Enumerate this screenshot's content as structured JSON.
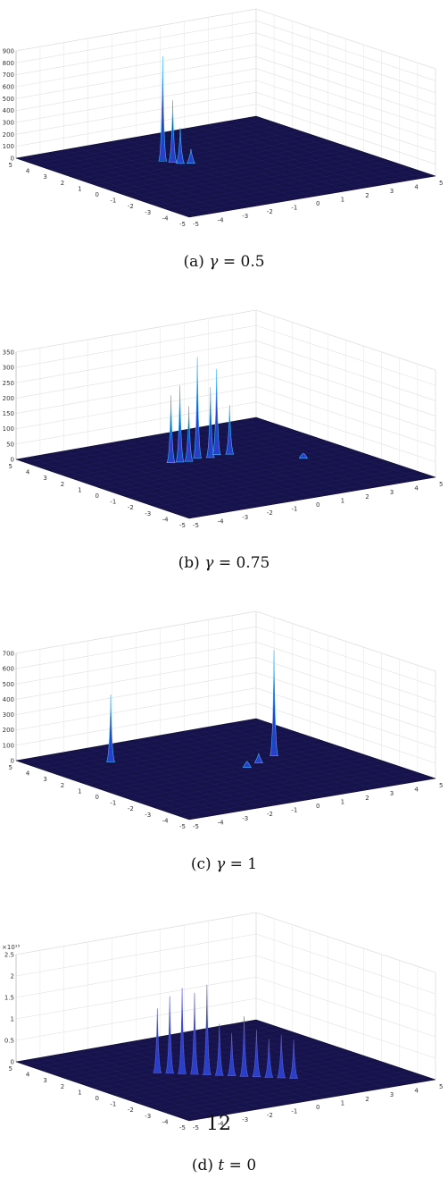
{
  "figure": {
    "panels": [
      {
        "id": "a",
        "caption": {
          "label": "(a)",
          "symbol": "γ",
          "op": "=",
          "value": "0.5"
        },
        "chart_data": {
          "type": "surface",
          "title": "",
          "xlabel": "",
          "ylabel": "",
          "zlabel": "",
          "zlim": [
            0,
            900
          ],
          "z_ticks": [
            "0",
            "100",
            "200",
            "300",
            "400",
            "500",
            "600",
            "700",
            "800",
            "900"
          ],
          "x_ticks": [
            "-5",
            "-4",
            "-3",
            "-2",
            "-1",
            "0",
            "1",
            "2",
            "3",
            "4",
            "5"
          ],
          "y_ticks": [
            "-5",
            "-4",
            "-3",
            "-2",
            "-1",
            "0",
            "1",
            "2",
            "3",
            "4",
            "5"
          ],
          "z_multiplier": "",
          "peaks": [
            {
              "x": -1.2,
              "y": 1.8,
              "z": 880
            },
            {
              "x": -1.0,
              "y": 1.5,
              "z": 520
            },
            {
              "x": -0.9,
              "y": 1.2,
              "z": 300
            },
            {
              "x": -0.6,
              "y": 1.0,
              "z": 120
            }
          ],
          "colormap": [
            "#16124a",
            "#2a3fc8",
            "#39b6ff"
          ],
          "grid": true
        }
      },
      {
        "id": "b",
        "caption": {
          "label": "(b)",
          "symbol": "γ",
          "op": "=",
          "value": "0.75"
        },
        "chart_data": {
          "type": "surface",
          "title": "",
          "xlabel": "",
          "ylabel": "",
          "zlabel": "",
          "zlim": [
            0,
            350
          ],
          "z_ticks": [
            "0",
            "50",
            "100",
            "150",
            "200",
            "250",
            "300",
            "350"
          ],
          "x_ticks": [
            "-5",
            "-4",
            "-3",
            "-2",
            "-1",
            "0",
            "1",
            "2",
            "3",
            "4",
            "5"
          ],
          "y_ticks": [
            "-5",
            "-4",
            "-3",
            "-2",
            "-1",
            "0",
            "1",
            "2",
            "3",
            "4",
            "5"
          ],
          "z_multiplier": "",
          "peaks": [
            {
              "x": -1.0,
              "y": 1.6,
              "z": 220
            },
            {
              "x": -0.7,
              "y": 1.5,
              "z": 250
            },
            {
              "x": -0.4,
              "y": 1.4,
              "z": 180
            },
            {
              "x": 0.1,
              "y": 1.6,
              "z": 330
            },
            {
              "x": 0.5,
              "y": 1.4,
              "z": 230
            },
            {
              "x": 0.9,
              "y": 1.6,
              "z": 280
            },
            {
              "x": 1.3,
              "y": 1.4,
              "z": 160
            },
            {
              "x": 3.0,
              "y": -0.5,
              "z": 15
            }
          ],
          "colormap": [
            "#16124a",
            "#2a3fc8",
            "#39b6ff"
          ],
          "grid": true
        }
      },
      {
        "id": "c",
        "caption": {
          "label": "(c)",
          "symbol": "γ",
          "op": "=",
          "value": "1"
        },
        "chart_data": {
          "type": "surface",
          "title": "",
          "xlabel": "",
          "ylabel": "",
          "zlabel": "",
          "zlim": [
            0,
            700
          ],
          "z_ticks": [
            "0",
            "100",
            "200",
            "300",
            "400",
            "500",
            "600",
            "700"
          ],
          "x_ticks": [
            "-5",
            "-4",
            "-3",
            "-2",
            "-1",
            "0",
            "1",
            "2",
            "3",
            "4",
            "5"
          ],
          "y_ticks": [
            "-5",
            "-4",
            "-3",
            "-2",
            "-1",
            "0",
            "1",
            "2",
            "3",
            "4",
            "5"
          ],
          "z_multiplier": "",
          "peaks": [
            {
              "x": -2.5,
              "y": 3.0,
              "z": 440
            },
            {
              "x": 2.5,
              "y": 0.5,
              "z": 690
            },
            {
              "x": 1.5,
              "y": 0.0,
              "z": 60
            },
            {
              "x": 0.8,
              "y": -0.3,
              "z": 40
            }
          ],
          "colormap": [
            "#16124a",
            "#2a3fc8",
            "#39b6ff"
          ],
          "grid": true
        }
      },
      {
        "id": "d",
        "caption": {
          "label": "(d)",
          "symbol": "t",
          "op": "=",
          "value": "0"
        },
        "chart_data": {
          "type": "surface",
          "title": "",
          "xlabel": "",
          "ylabel": "",
          "zlabel": "",
          "zlim": [
            0,
            2.5
          ],
          "z_ticks": [
            "0",
            "0.5",
            "1",
            "1.5",
            "2",
            "2.5"
          ],
          "x_ticks": [
            "-5",
            "-4",
            "-3",
            "-2",
            "-1",
            "0",
            "1",
            "2",
            "3",
            "4",
            "5"
          ],
          "y_ticks": [
            "-5",
            "-4",
            "-3",
            "-2",
            "-1",
            "0",
            "1",
            "2",
            "3",
            "4",
            "5"
          ],
          "z_multiplier": "×10¹⁵",
          "peaks": [
            {
              "x": -2.0,
              "y": 1.0,
              "z": 1.5
            },
            {
              "x": -1.7,
              "y": 0.7,
              "z": 1.8
            },
            {
              "x": -1.4,
              "y": 0.4,
              "z": 2.0
            },
            {
              "x": -1.1,
              "y": 0.1,
              "z": 1.9
            },
            {
              "x": -0.8,
              "y": -0.2,
              "z": 2.1
            },
            {
              "x": -0.5,
              "y": -0.5,
              "z": 1.2
            },
            {
              "x": -0.2,
              "y": -0.8,
              "z": 1.0
            },
            {
              "x": 0.1,
              "y": -1.1,
              "z": 1.4
            },
            {
              "x": 0.4,
              "y": -1.4,
              "z": 1.1
            },
            {
              "x": 0.7,
              "y": -1.7,
              "z": 0.9
            },
            {
              "x": 1.0,
              "y": -2.0,
              "z": 1.0
            },
            {
              "x": 1.3,
              "y": -2.3,
              "z": 0.9
            }
          ],
          "colormap": [
            "#16124a",
            "#2a3fc8",
            "#5a5fd8"
          ],
          "grid": true
        }
      }
    ]
  },
  "page_number": "12"
}
